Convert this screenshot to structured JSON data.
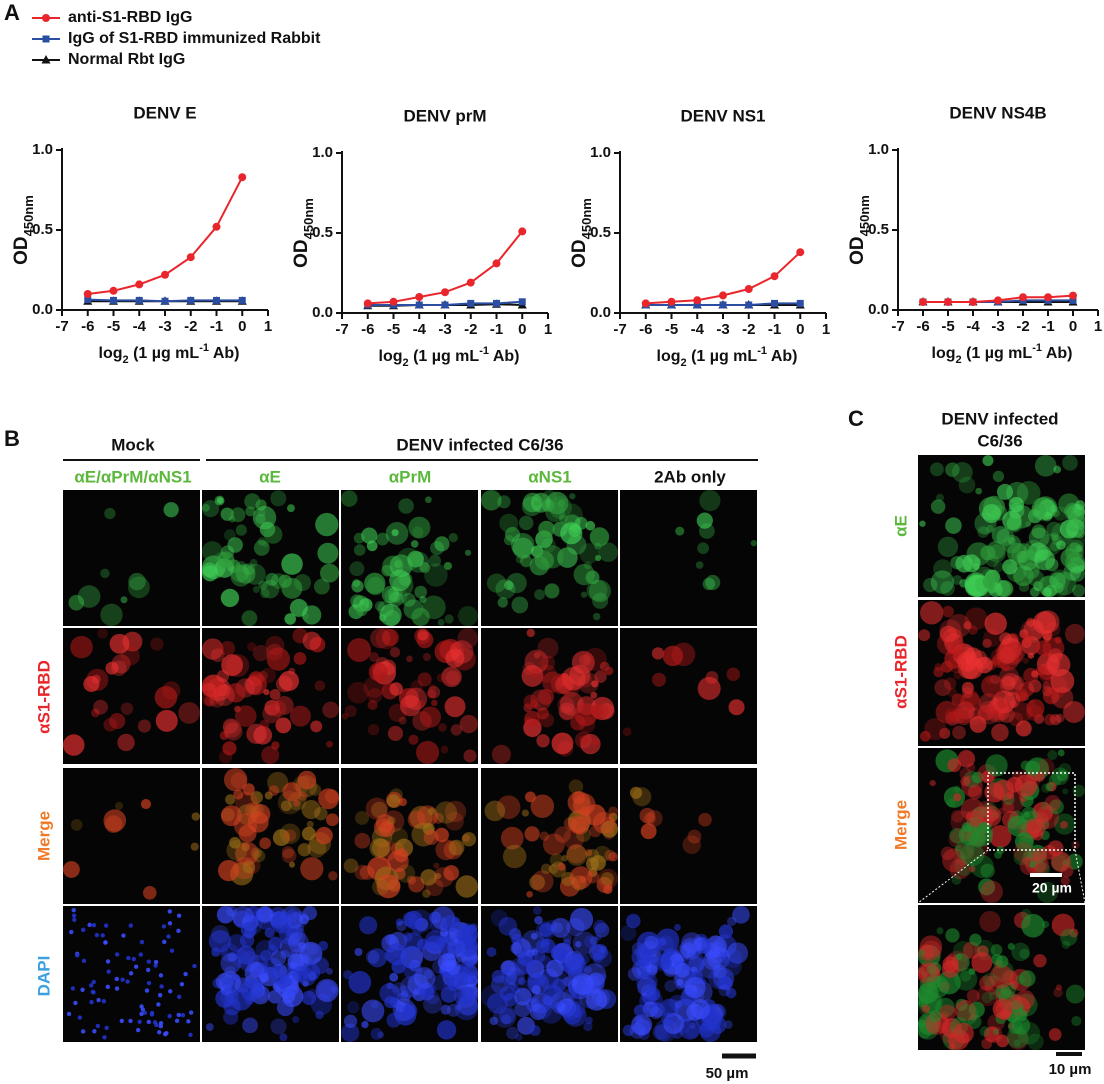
{
  "panel_labels": [
    "A",
    "B",
    "C"
  ],
  "chart_data": [
    {
      "type": "line",
      "title": "DENV E",
      "ylabel": "OD",
      "ylabel_subscript": "450nm",
      "xlabel": [
        "log",
        "2",
        " (1 µg mL",
        "-1",
        " Ab)"
      ],
      "x": [
        -6,
        -5,
        -4,
        -3,
        -2,
        -1,
        0
      ],
      "xlim": [
        -7,
        1
      ],
      "xticks": [
        -7,
        -6,
        -5,
        -4,
        -3,
        -2,
        -1,
        0,
        1
      ],
      "ylim": [
        0,
        1
      ],
      "yticks": [
        {
          "value": 0,
          "label": "0.0"
        },
        {
          "value": 0.5,
          "label": "0.5"
        },
        {
          "value": 1,
          "label": "1.0"
        }
      ],
      "series": [
        {
          "name": "anti-S1-RBD IgG",
          "color": "#e8262b",
          "marker": "circle",
          "values": [
            0.1,
            0.12,
            0.16,
            0.22,
            0.33,
            0.52,
            0.83
          ]
        },
        {
          "name": "IgG of S1-RBD immunized Rabbit",
          "color": "#2b4ea2",
          "marker": "square",
          "values": [
            0.065,
            0.06,
            0.06,
            0.055,
            0.06,
            0.06,
            0.06
          ]
        },
        {
          "name": "Normal Rbt IgG",
          "color": "#111111",
          "marker": "triangle",
          "values": [
            0.055,
            0.055,
            0.055,
            0.055,
            0.055,
            0.055,
            0.055
          ]
        }
      ]
    },
    {
      "type": "line",
      "title": "DENV prM",
      "ylabel": "OD",
      "ylabel_subscript": "450nm",
      "xlabel": [
        "log",
        "2",
        " (1 µg mL",
        "-1",
        " Ab)"
      ],
      "x": [
        -6,
        -5,
        -4,
        -3,
        -2,
        -1,
        0
      ],
      "xlim": [
        -7,
        1
      ],
      "xticks": [
        -7,
        -6,
        -5,
        -4,
        -3,
        -2,
        -1,
        0,
        1
      ],
      "ylim": [
        0,
        1
      ],
      "yticks": [
        {
          "value": 0,
          "label": "0.0"
        },
        {
          "value": 0.5,
          "label": "0.5"
        },
        {
          "value": 1,
          "label": "1.0"
        }
      ],
      "series": [
        {
          "color": "#e8262b",
          "marker": "circle",
          "values": [
            0.06,
            0.07,
            0.1,
            0.13,
            0.19,
            0.31,
            0.51
          ]
        },
        {
          "color": "#2b4ea2",
          "marker": "square",
          "values": [
            0.05,
            0.05,
            0.05,
            0.05,
            0.06,
            0.06,
            0.07
          ]
        },
        {
          "color": "#111111",
          "marker": "triangle",
          "values": [
            0.045,
            0.045,
            0.05,
            0.05,
            0.05,
            0.055,
            0.05
          ]
        }
      ]
    },
    {
      "type": "line",
      "title": "DENV NS1",
      "ylabel": "OD",
      "ylabel_subscript": "450nm",
      "xlabel": [
        "log",
        "2",
        " (1 µg mL",
        "-1",
        " Ab)"
      ],
      "x": [
        -6,
        -5,
        -4,
        -3,
        -2,
        -1,
        0
      ],
      "xlim": [
        -7,
        1
      ],
      "xticks": [
        -7,
        -6,
        -5,
        -4,
        -3,
        -2,
        -1,
        0,
        1
      ],
      "ylim": [
        0,
        1
      ],
      "yticks": [
        {
          "value": 0,
          "label": "0.0"
        },
        {
          "value": 0.5,
          "label": "0.5"
        },
        {
          "value": 1,
          "label": "1.0"
        }
      ],
      "series": [
        {
          "color": "#e8262b",
          "marker": "circle",
          "values": [
            0.06,
            0.07,
            0.08,
            0.11,
            0.15,
            0.23,
            0.38
          ]
        },
        {
          "color": "#2b4ea2",
          "marker": "square",
          "values": [
            0.05,
            0.05,
            0.05,
            0.05,
            0.05,
            0.06,
            0.06
          ]
        },
        {
          "color": "#111111",
          "marker": "triangle",
          "values": [
            0.05,
            0.05,
            0.05,
            0.05,
            0.05,
            0.05,
            0.05
          ]
        }
      ]
    },
    {
      "type": "line",
      "title": "DENV NS4B",
      "ylabel": "OD",
      "ylabel_subscript": "450nm",
      "xlabel": [
        "log",
        "2",
        " (1 µg mL",
        "-1",
        " Ab)"
      ],
      "x": [
        -6,
        -5,
        -4,
        -3,
        -2,
        -1,
        0
      ],
      "xlim": [
        -7,
        1
      ],
      "xticks": [
        -7,
        -6,
        -5,
        -4,
        -3,
        -2,
        -1,
        0,
        1
      ],
      "ylim": [
        0,
        1
      ],
      "yticks": [
        {
          "value": 0,
          "label": "0.0"
        },
        {
          "value": 0.5,
          "label": "0.5"
        },
        {
          "value": 1,
          "label": "1.0"
        }
      ],
      "series": [
        {
          "color": "#e8262b",
          "marker": "circle",
          "values": [
            0.05,
            0.05,
            0.05,
            0.06,
            0.08,
            0.08,
            0.09
          ]
        },
        {
          "color": "#2b4ea2",
          "marker": "square",
          "values": [
            0.05,
            0.05,
            0.05,
            0.05,
            0.06,
            0.06,
            0.06
          ]
        },
        {
          "color": "#111111",
          "marker": "triangle",
          "values": [
            0.05,
            0.05,
            0.05,
            0.05,
            0.05,
            0.05,
            0.05
          ]
        }
      ]
    }
  ],
  "panel_b": {
    "group_headers": [
      "Mock",
      "DENV infected C6/36"
    ],
    "column_labels": [
      "αE/αPrM/αNS1",
      "αE",
      "αPrM",
      "αNS1",
      "2Ab only"
    ],
    "row_labels": [
      "αS1-RBD",
      "Merge",
      "DAPI"
    ],
    "scale_bar": "50 µm"
  },
  "panel_c": {
    "title": [
      "DENV infected",
      "C6/36"
    ],
    "row_labels": [
      "αE",
      "αS1-RBD",
      "Merge"
    ],
    "scale_bars": [
      "20 µm",
      "10 µm"
    ]
  }
}
